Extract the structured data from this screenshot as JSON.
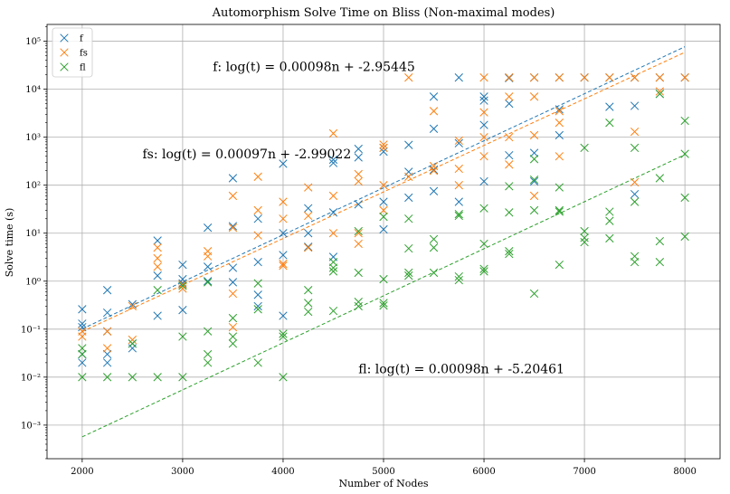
{
  "chart_data": {
    "type": "scatter",
    "title": "Automorphism Solve Time on Bliss (Non-maximal modes)",
    "xlabel": "Number of Nodes",
    "ylabel": "Solve time (s)",
    "xlim": [
      1650,
      8350
    ],
    "ylim_log10": [
      -3.7,
      5.35
    ],
    "y_scale": "log",
    "grid": true,
    "legend_position": "upper-left",
    "x_ticks": [
      2000,
      3000,
      4000,
      5000,
      6000,
      7000,
      8000
    ],
    "x_tick_labels": [
      "2000",
      "3000",
      "4000",
      "5000",
      "6000",
      "7000",
      "8000"
    ],
    "y_ticks_log10": [
      -3,
      -2,
      -1,
      0,
      1,
      2,
      3,
      4,
      5
    ],
    "y_tick_labels": [
      "10⁻³",
      "10⁻²",
      "10⁻¹",
      "10⁰",
      "10¹",
      "10²",
      "10³",
      "10⁴",
      "10⁵"
    ],
    "series": [
      {
        "name": "f",
        "color": "#1f77b4",
        "points": [
          [
            2000,
            0.26
          ],
          [
            2000,
            0.13
          ],
          [
            2000,
            0.11
          ],
          [
            2000,
            0.03
          ],
          [
            2000,
            0.02
          ],
          [
            2250,
            0.65
          ],
          [
            2250,
            0.22
          ],
          [
            2250,
            0.09
          ],
          [
            2250,
            0.03
          ],
          [
            2250,
            0.02
          ],
          [
            2500,
            0.33
          ],
          [
            2500,
            0.05
          ],
          [
            2500,
            0.04
          ],
          [
            2750,
            7.0
          ],
          [
            2750,
            1.3
          ],
          [
            2750,
            0.19
          ],
          [
            3000,
            2.2
          ],
          [
            3000,
            1.1
          ],
          [
            3000,
            0.9
          ],
          [
            3000,
            0.25
          ],
          [
            3250,
            13
          ],
          [
            3250,
            2.0
          ],
          [
            3250,
            1.0
          ],
          [
            3500,
            140
          ],
          [
            3500,
            14
          ],
          [
            3500,
            1.9
          ],
          [
            3500,
            0.95
          ],
          [
            3750,
            20
          ],
          [
            3750,
            2.5
          ],
          [
            3750,
            0.52
          ],
          [
            3750,
            0.3
          ],
          [
            4000,
            280
          ],
          [
            4000,
            10
          ],
          [
            4000,
            3.5
          ],
          [
            4000,
            0.19
          ],
          [
            4250,
            33
          ],
          [
            4250,
            10
          ],
          [
            4250,
            5.2
          ],
          [
            4500,
            340
          ],
          [
            4500,
            290
          ],
          [
            4500,
            27
          ],
          [
            4500,
            3.2
          ],
          [
            4750,
            570
          ],
          [
            4750,
            380
          ],
          [
            4750,
            40
          ],
          [
            5000,
            600
          ],
          [
            5000,
            500
          ],
          [
            5000,
            45
          ],
          [
            5000,
            12
          ],
          [
            5250,
            690
          ],
          [
            5250,
            190
          ],
          [
            5250,
            55
          ],
          [
            5500,
            7000
          ],
          [
            5500,
            1500
          ],
          [
            5500,
            210
          ],
          [
            5500,
            75
          ],
          [
            5750,
            17500
          ],
          [
            5750,
            750
          ],
          [
            5750,
            45
          ],
          [
            6000,
            7000
          ],
          [
            6000,
            5800
          ],
          [
            6000,
            1800
          ],
          [
            6000,
            120
          ],
          [
            6250,
            17500
          ],
          [
            6250,
            17000
          ],
          [
            6250,
            5000
          ],
          [
            6250,
            420
          ],
          [
            6500,
            17500
          ],
          [
            6500,
            470
          ],
          [
            6500,
            120
          ],
          [
            6750,
            17500
          ],
          [
            6750,
            3800
          ],
          [
            6750,
            1100
          ],
          [
            7000,
            17500
          ],
          [
            7250,
            17500
          ],
          [
            7250,
            4300
          ],
          [
            7500,
            17500
          ],
          [
            7500,
            4500
          ],
          [
            7500,
            65
          ],
          [
            7750,
            17500
          ],
          [
            7750,
            8000
          ],
          [
            8000,
            17500
          ]
        ]
      },
      {
        "name": "fs",
        "color": "#ff7f0e",
        "points": [
          [
            2000,
            0.09
          ],
          [
            2000,
            0.07
          ],
          [
            2250,
            0.09
          ],
          [
            2250,
            0.04
          ],
          [
            2500,
            0.06
          ],
          [
            2500,
            0.3
          ],
          [
            2750,
            5.0
          ],
          [
            2750,
            3.0
          ],
          [
            2750,
            2.0
          ],
          [
            3000,
            0.85
          ],
          [
            3000,
            0.7
          ],
          [
            3250,
            4.2
          ],
          [
            3250,
            3.3
          ],
          [
            3500,
            60
          ],
          [
            3500,
            13
          ],
          [
            3500,
            0.55
          ],
          [
            3500,
            0.11
          ],
          [
            3750,
            150
          ],
          [
            3750,
            30
          ],
          [
            3750,
            9.0
          ],
          [
            4000,
            45
          ],
          [
            4000,
            20
          ],
          [
            4000,
            2.3
          ],
          [
            4000,
            2.1
          ],
          [
            4250,
            90
          ],
          [
            4250,
            23
          ],
          [
            4250,
            5.0
          ],
          [
            4500,
            1200
          ],
          [
            4500,
            60
          ],
          [
            4500,
            10
          ],
          [
            4750,
            170
          ],
          [
            4750,
            120
          ],
          [
            4750,
            10
          ],
          [
            4750,
            6.0
          ],
          [
            5000,
            700
          ],
          [
            5000,
            600
          ],
          [
            5000,
            100
          ],
          [
            5000,
            30
          ],
          [
            5250,
            17500
          ],
          [
            5250,
            150
          ],
          [
            5500,
            3500
          ],
          [
            5500,
            250
          ],
          [
            5500,
            200
          ],
          [
            5750,
            850
          ],
          [
            5750,
            220
          ],
          [
            5750,
            100
          ],
          [
            6000,
            17500
          ],
          [
            6000,
            3300
          ],
          [
            6000,
            1000
          ],
          [
            6000,
            400
          ],
          [
            6250,
            17500
          ],
          [
            6250,
            7000
          ],
          [
            6250,
            1000
          ],
          [
            6250,
            270
          ],
          [
            6500,
            17500
          ],
          [
            6500,
            7000
          ],
          [
            6500,
            1100
          ],
          [
            6500,
            60
          ],
          [
            6750,
            17500
          ],
          [
            6750,
            3500
          ],
          [
            6750,
            2000
          ],
          [
            6750,
            400
          ],
          [
            7000,
            17500
          ],
          [
            7250,
            17500
          ],
          [
            7500,
            17500
          ],
          [
            7500,
            1300
          ],
          [
            7500,
            115
          ],
          [
            7750,
            17500
          ],
          [
            7750,
            9000
          ],
          [
            8000,
            17500
          ]
        ]
      },
      {
        "name": "fl",
        "color": "#2ca02c",
        "points": [
          [
            2000,
            0.04
          ],
          [
            2000,
            0.03
          ],
          [
            2000,
            0.01
          ],
          [
            2250,
            0.01
          ],
          [
            2500,
            0.05
          ],
          [
            2500,
            0.01
          ],
          [
            2750,
            0.65
          ],
          [
            2750,
            0.01
          ],
          [
            3000,
            0.8
          ],
          [
            3000,
            0.07
          ],
          [
            3000,
            0.01
          ],
          [
            3250,
            0.95
          ],
          [
            3250,
            0.09
          ],
          [
            3250,
            0.03
          ],
          [
            3250,
            0.02
          ],
          [
            3500,
            0.17
          ],
          [
            3500,
            0.07
          ],
          [
            3500,
            0.05
          ],
          [
            3750,
            0.9
          ],
          [
            3750,
            0.26
          ],
          [
            3750,
            0.02
          ],
          [
            4000,
            0.08
          ],
          [
            4000,
            0.07
          ],
          [
            4000,
            0.01
          ],
          [
            4250,
            0.65
          ],
          [
            4250,
            0.35
          ],
          [
            4250,
            0.23
          ],
          [
            4500,
            2.5
          ],
          [
            4500,
            1.9
          ],
          [
            4500,
            1.6
          ],
          [
            4500,
            0.24
          ],
          [
            4750,
            11
          ],
          [
            4750,
            1.5
          ],
          [
            4750,
            0.37
          ],
          [
            4750,
            0.3
          ],
          [
            5000,
            22
          ],
          [
            5000,
            1.1
          ],
          [
            5000,
            0.35
          ],
          [
            5000,
            0.31
          ],
          [
            5250,
            20
          ],
          [
            5250,
            4.8
          ],
          [
            5250,
            1.5
          ],
          [
            5250,
            1.3
          ],
          [
            5500,
            7.5
          ],
          [
            5500,
            5.0
          ],
          [
            5500,
            1.5
          ],
          [
            5750,
            25
          ],
          [
            5750,
            23
          ],
          [
            5750,
            1.25
          ],
          [
            5750,
            1.05
          ],
          [
            6000,
            33
          ],
          [
            6000,
            6.0
          ],
          [
            6000,
            1.8
          ],
          [
            6000,
            1.6
          ],
          [
            6250,
            95
          ],
          [
            6250,
            27
          ],
          [
            6250,
            4.2
          ],
          [
            6250,
            3.7
          ],
          [
            6500,
            350
          ],
          [
            6500,
            130
          ],
          [
            6500,
            30
          ],
          [
            6500,
            0.55
          ],
          [
            6750,
            90
          ],
          [
            6750,
            30
          ],
          [
            6750,
            28
          ],
          [
            6750,
            2.2
          ],
          [
            7000,
            600
          ],
          [
            7000,
            11
          ],
          [
            7000,
            8
          ],
          [
            7000,
            6.5
          ],
          [
            7250,
            2000
          ],
          [
            7250,
            28
          ],
          [
            7250,
            18
          ],
          [
            7250,
            7.8
          ],
          [
            7500,
            600
          ],
          [
            7500,
            45
          ],
          [
            7500,
            3.3
          ],
          [
            7500,
            2.5
          ],
          [
            7750,
            8000
          ],
          [
            7750,
            140
          ],
          [
            7750,
            6.8
          ],
          [
            7750,
            2.5
          ],
          [
            8000,
            2200
          ],
          [
            8000,
            450
          ],
          [
            8000,
            55
          ],
          [
            8000,
            8.5
          ]
        ]
      }
    ],
    "fit_lines": [
      {
        "series": "f",
        "color": "#1f77b4",
        "slope": 0.00098,
        "intercept": -2.95445,
        "x_range": [
          2000,
          8000
        ]
      },
      {
        "series": "fs",
        "color": "#ff7f0e",
        "slope": 0.00097,
        "intercept": -2.99022,
        "x_range": [
          2000,
          8000
        ]
      },
      {
        "series": "fl",
        "color": "#2ca02c",
        "slope": 0.00098,
        "intercept": -5.20461,
        "x_range": [
          2000,
          8000
        ]
      }
    ],
    "annotations": [
      {
        "text": "f: log(t) = 0.00098n + -2.95445",
        "x": 3300,
        "y": 30000
      },
      {
        "text": "fs: log(t) = 0.00097n + -2.99022",
        "x": 2600,
        "y": 450
      },
      {
        "text": "fl: log(t) = 0.00098n + -5.20461",
        "x": 4750,
        "y": 0.015
      }
    ]
  }
}
